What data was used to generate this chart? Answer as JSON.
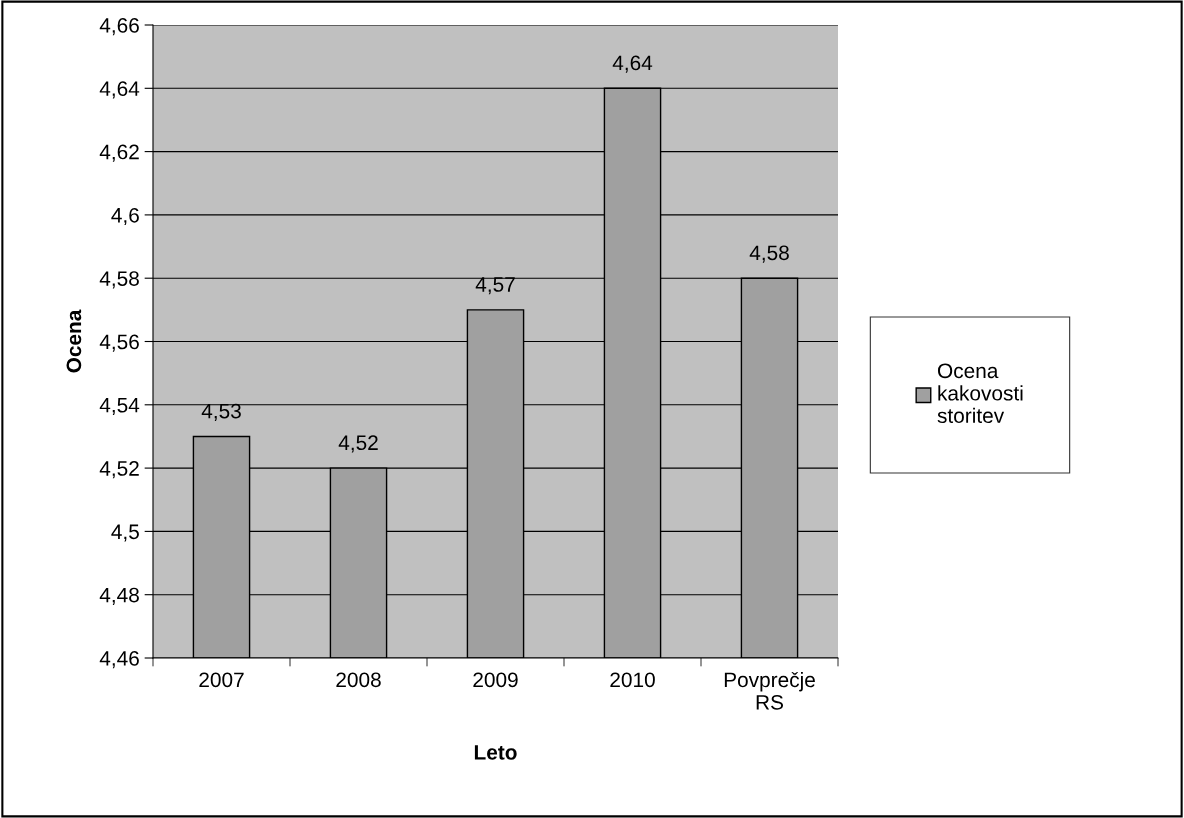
{
  "chart_data": {
    "type": "bar",
    "xlabel": "Leto",
    "ylabel": "Ocena",
    "categories": [
      "2007",
      "2008",
      "2009",
      "2010",
      "Povprečje\nRS"
    ],
    "series": [
      {
        "name": "Ocena\nkakovosti\nstoritev",
        "color": "#a0a0a0",
        "values": [
          4.53,
          4.52,
          4.57,
          4.64,
          4.58
        ],
        "value_labels": [
          "4,53",
          "4,52",
          "4,57",
          "4,64",
          "4,58"
        ]
      }
    ],
    "ylim": [
      4.46,
      4.66
    ],
    "yticks": [
      {
        "value": 4.46,
        "label": "4,46"
      },
      {
        "value": 4.48,
        "label": "4,48"
      },
      {
        "value": 4.5,
        "label": "4,5"
      },
      {
        "value": 4.52,
        "label": "4,52"
      },
      {
        "value": 4.54,
        "label": "4,54"
      },
      {
        "value": 4.56,
        "label": "4,56"
      },
      {
        "value": 4.58,
        "label": "4,58"
      },
      {
        "value": 4.6,
        "label": "4,6"
      },
      {
        "value": 4.62,
        "label": "4,62"
      },
      {
        "value": 4.64,
        "label": "4,64"
      },
      {
        "value": 4.66,
        "label": "4,66"
      }
    ],
    "grid": "y",
    "legend": "right"
  }
}
